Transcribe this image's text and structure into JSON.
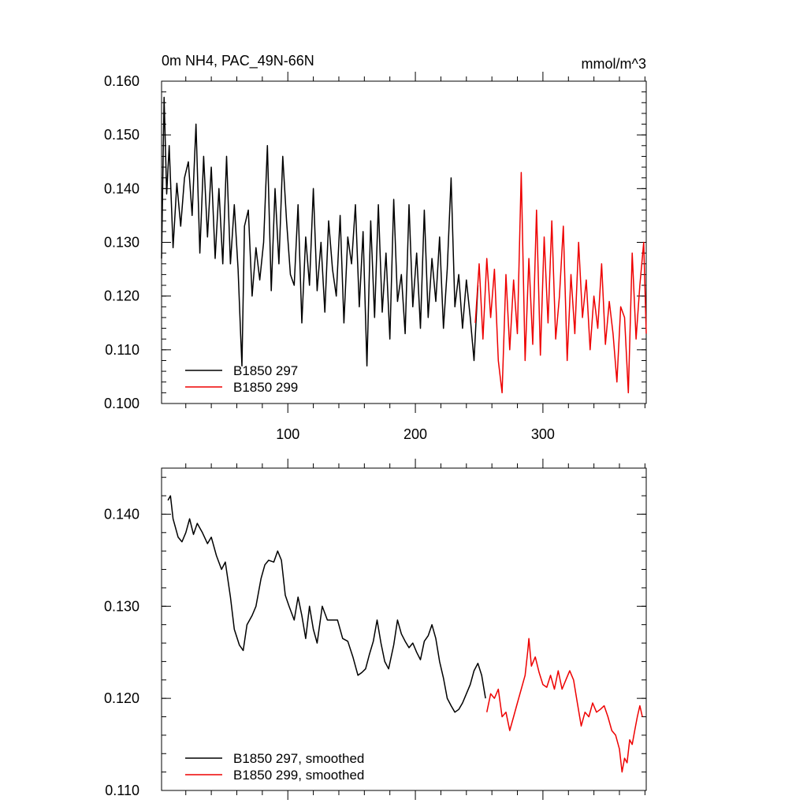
{
  "chart_data": [
    {
      "type": "line",
      "title": "0m NH4, PAC_49N-66N",
      "units": "mmol/m^3",
      "xlim": [
        1,
        381
      ],
      "ylim": [
        0.1,
        0.16
      ],
      "x_ticks": [
        100,
        200,
        300
      ],
      "x_tick_labels": [
        "100",
        "200",
        "300"
      ],
      "y_ticks": [
        0.1,
        0.11,
        0.12,
        0.13,
        0.14,
        0.15,
        0.16
      ],
      "y_tick_labels": [
        "0.100",
        "0.110",
        "0.120",
        "0.130",
        "0.140",
        "0.150",
        "0.160"
      ],
      "legend_position": "bottom-left",
      "series": [
        {
          "name": "B1850 297",
          "color": "#000000",
          "x": [
            1,
            3,
            5,
            7,
            10,
            13,
            16,
            19,
            22,
            25,
            28,
            31,
            34,
            37,
            40,
            43,
            46,
            49,
            52,
            55,
            58,
            61,
            63,
            64,
            66,
            69,
            72,
            75,
            78,
            81,
            84,
            87,
            90,
            93,
            96,
            99,
            102,
            105,
            108,
            111,
            114,
            117,
            120,
            123,
            126,
            129,
            132,
            135,
            138,
            141,
            144,
            147,
            150,
            153,
            156,
            159,
            162,
            165,
            168,
            171,
            174,
            177,
            180,
            183,
            186,
            189,
            192,
            195,
            198,
            201,
            204,
            207,
            210,
            213,
            216,
            219,
            222,
            225,
            228,
            231,
            234,
            237,
            240,
            243,
            246,
            249
          ],
          "values": [
            0.127,
            0.157,
            0.139,
            0.148,
            0.129,
            0.141,
            0.133,
            0.142,
            0.145,
            0.135,
            0.152,
            0.128,
            0.146,
            0.131,
            0.144,
            0.127,
            0.14,
            0.126,
            0.146,
            0.126,
            0.137,
            0.125,
            0.113,
            0.107,
            0.133,
            0.136,
            0.12,
            0.129,
            0.123,
            0.13,
            0.148,
            0.121,
            0.14,
            0.126,
            0.146,
            0.134,
            0.124,
            0.122,
            0.137,
            0.115,
            0.131,
            0.122,
            0.14,
            0.121,
            0.13,
            0.117,
            0.134,
            0.125,
            0.12,
            0.135,
            0.115,
            0.131,
            0.126,
            0.137,
            0.118,
            0.132,
            0.107,
            0.134,
            0.116,
            0.137,
            0.117,
            0.128,
            0.112,
            0.138,
            0.119,
            0.124,
            0.113,
            0.137,
            0.118,
            0.128,
            0.114,
            0.136,
            0.116,
            0.127,
            0.119,
            0.131,
            0.114,
            0.125,
            0.142,
            0.118,
            0.124,
            0.114,
            0.123,
            0.116,
            0.108,
            0.122
          ]
        },
        {
          "name": "B1850 299",
          "color": "#ee0000",
          "x": [
            247,
            250,
            253,
            256,
            259,
            262,
            265,
            268,
            271,
            274,
            277,
            280,
            283,
            286,
            289,
            292,
            295,
            298,
            301,
            304,
            307,
            310,
            313,
            316,
            319,
            322,
            325,
            328,
            331,
            334,
            337,
            340,
            343,
            346,
            349,
            352,
            355,
            358,
            361,
            364,
            367,
            370,
            373,
            376,
            379,
            381
          ],
          "values": [
            0.115,
            0.126,
            0.112,
            0.127,
            0.116,
            0.125,
            0.108,
            0.102,
            0.124,
            0.11,
            0.123,
            0.113,
            0.143,
            0.108,
            0.127,
            0.111,
            0.136,
            0.109,
            0.131,
            0.115,
            0.134,
            0.112,
            0.12,
            0.133,
            0.108,
            0.124,
            0.113,
            0.13,
            0.116,
            0.123,
            0.11,
            0.12,
            0.114,
            0.126,
            0.111,
            0.119,
            0.113,
            0.104,
            0.118,
            0.116,
            0.102,
            0.128,
            0.112,
            0.122,
            0.13,
            0.113
          ]
        }
      ]
    },
    {
      "type": "line",
      "title": "",
      "xlim": [
        1,
        381
      ],
      "ylim": [
        0.11,
        0.145
      ],
      "x_ticks": [
        100,
        200,
        300
      ],
      "y_ticks": [
        0.11,
        0.12,
        0.13,
        0.14
      ],
      "y_tick_labels": [
        "0.110",
        "0.120",
        "0.130",
        "0.140"
      ],
      "legend_position": "bottom-left",
      "series": [
        {
          "name": "B1850 297, smoothed",
          "color": "#000000",
          "x": [
            6,
            8,
            10,
            14,
            17,
            20,
            23,
            26,
            29,
            33,
            37,
            40,
            44,
            48,
            51,
            55,
            58,
            62,
            65,
            68,
            72,
            75,
            79,
            82,
            85,
            89,
            92,
            95,
            98,
            101,
            105,
            108,
            111,
            114,
            117,
            120,
            123,
            127,
            131,
            135,
            139,
            143,
            147,
            151,
            155,
            158,
            161,
            164,
            167,
            170,
            173,
            176,
            179,
            183,
            186,
            189,
            192,
            195,
            198,
            201,
            204,
            207,
            210,
            213,
            216,
            219,
            222,
            225,
            228,
            231,
            234,
            237,
            240,
            243,
            246,
            249,
            252,
            255
          ],
          "values": [
            0.1415,
            0.142,
            0.1395,
            0.1375,
            0.137,
            0.138,
            0.1395,
            0.1378,
            0.139,
            0.138,
            0.1368,
            0.1375,
            0.1355,
            0.134,
            0.1348,
            0.131,
            0.1275,
            0.1258,
            0.1252,
            0.128,
            0.129,
            0.13,
            0.133,
            0.1345,
            0.135,
            0.1348,
            0.136,
            0.135,
            0.1312,
            0.13,
            0.1285,
            0.131,
            0.129,
            0.1265,
            0.13,
            0.1275,
            0.126,
            0.13,
            0.1285,
            0.1285,
            0.1285,
            0.1265,
            0.1262,
            0.1245,
            0.1225,
            0.1228,
            0.1232,
            0.1248,
            0.1262,
            0.1285,
            0.126,
            0.124,
            0.1232,
            0.1258,
            0.1285,
            0.127,
            0.1262,
            0.1255,
            0.126,
            0.125,
            0.1242,
            0.1262,
            0.1268,
            0.128,
            0.1265,
            0.124,
            0.1222,
            0.12,
            0.1192,
            0.1185,
            0.1188,
            0.1195,
            0.1205,
            0.1215,
            0.123,
            0.1238,
            0.1225,
            0.12
          ]
        },
        {
          "name": "B1850 299, smoothed",
          "color": "#ee0000",
          "x": [
            256,
            259,
            262,
            265,
            268,
            271,
            274,
            277,
            280,
            283,
            286,
            288,
            289,
            291,
            294,
            297,
            300,
            303,
            306,
            309,
            312,
            315,
            318,
            321,
            324,
            327,
            330,
            333,
            336,
            339,
            342,
            345,
            348,
            351,
            354,
            357,
            360,
            362,
            364,
            366,
            368,
            370,
            372,
            374,
            376,
            378
          ],
          "values": [
            0.1185,
            0.1205,
            0.12,
            0.121,
            0.118,
            0.1185,
            0.1165,
            0.118,
            0.1195,
            0.121,
            0.1225,
            0.125,
            0.1265,
            0.1235,
            0.1245,
            0.1228,
            0.1215,
            0.1212,
            0.1225,
            0.121,
            0.123,
            0.121,
            0.122,
            0.123,
            0.122,
            0.1195,
            0.117,
            0.1185,
            0.118,
            0.1195,
            0.1185,
            0.1188,
            0.1192,
            0.118,
            0.1165,
            0.116,
            0.1145,
            0.112,
            0.1135,
            0.113,
            0.1155,
            0.115,
            0.1165,
            0.118,
            0.1192,
            0.118
          ]
        }
      ]
    }
  ]
}
